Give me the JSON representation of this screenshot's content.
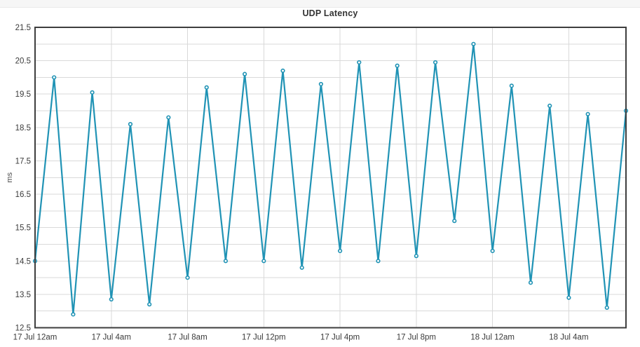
{
  "page": {
    "top_strip_color": "#f6f6f6",
    "background_color": "#ffffff"
  },
  "chart_data": {
    "type": "line",
    "title": "UDP Latency",
    "xlabel": "",
    "ylabel": "ms",
    "ylim": [
      12.5,
      21.5
    ],
    "y_tick_step": 1.0,
    "y_grid_step": 0.5,
    "grid": true,
    "legend": "none",
    "series_color": "#2093b5",
    "marker": "open-circle",
    "y_tick_labels": [
      "21.5",
      "20.5",
      "19.5",
      "18.5",
      "17.5",
      "16.5",
      "15.5",
      "14.5",
      "13.5",
      "12.5"
    ],
    "x_tick_labels": [
      "17 Jul 12am",
      "17 Jul 4am",
      "17 Jul 8am",
      "17 Jul 12pm",
      "17 Jul 4pm",
      "17 Jul 8pm",
      "18 Jul 12am",
      "18 Jul 4am"
    ],
    "x_tick_positions": [
      0,
      4,
      8,
      12,
      16,
      20,
      24,
      28
    ],
    "x_count": 32,
    "points": [
      {
        "time": "17 Jul 12am",
        "ms": 14.5
      },
      {
        "time": "17 Jul 1am",
        "ms": 20.0
      },
      {
        "time": "17 Jul 2am",
        "ms": 12.9
      },
      {
        "time": "17 Jul 3am",
        "ms": 19.55
      },
      {
        "time": "17 Jul 4am",
        "ms": 13.35
      },
      {
        "time": "17 Jul 5am",
        "ms": 18.6
      },
      {
        "time": "17 Jul 6am",
        "ms": 13.2
      },
      {
        "time": "17 Jul 7am",
        "ms": 18.8
      },
      {
        "time": "17 Jul 8am",
        "ms": 14.0
      },
      {
        "time": "17 Jul 9am",
        "ms": 19.7
      },
      {
        "time": "17 Jul 10am",
        "ms": 14.5
      },
      {
        "time": "17 Jul 11am",
        "ms": 20.1
      },
      {
        "time": "17 Jul 12pm",
        "ms": 14.5
      },
      {
        "time": "17 Jul 1pm",
        "ms": 20.2
      },
      {
        "time": "17 Jul 2pm",
        "ms": 14.3
      },
      {
        "time": "17 Jul 3pm",
        "ms": 19.8
      },
      {
        "time": "17 Jul 4pm",
        "ms": 14.8
      },
      {
        "time": "17 Jul 5pm",
        "ms": 20.45
      },
      {
        "time": "17 Jul 6pm",
        "ms": 14.5
      },
      {
        "time": "17 Jul 7pm",
        "ms": 20.35
      },
      {
        "time": "17 Jul 8pm",
        "ms": 14.65
      },
      {
        "time": "17 Jul 9pm",
        "ms": 20.45
      },
      {
        "time": "17 Jul 10pm",
        "ms": 15.7
      },
      {
        "time": "17 Jul 11pm",
        "ms": 21.0
      },
      {
        "time": "18 Jul 12am",
        "ms": 14.8
      },
      {
        "time": "18 Jul 1am",
        "ms": 19.75
      },
      {
        "time": "18 Jul 2am",
        "ms": 13.85
      },
      {
        "time": "18 Jul 3am",
        "ms": 19.15
      },
      {
        "time": "18 Jul 4am",
        "ms": 13.4
      },
      {
        "time": "18 Jul 5am",
        "ms": 18.9
      },
      {
        "time": "18 Jul 6am",
        "ms": 13.1
      },
      {
        "time": "18 Jul 7am",
        "ms": 19.0
      }
    ]
  }
}
